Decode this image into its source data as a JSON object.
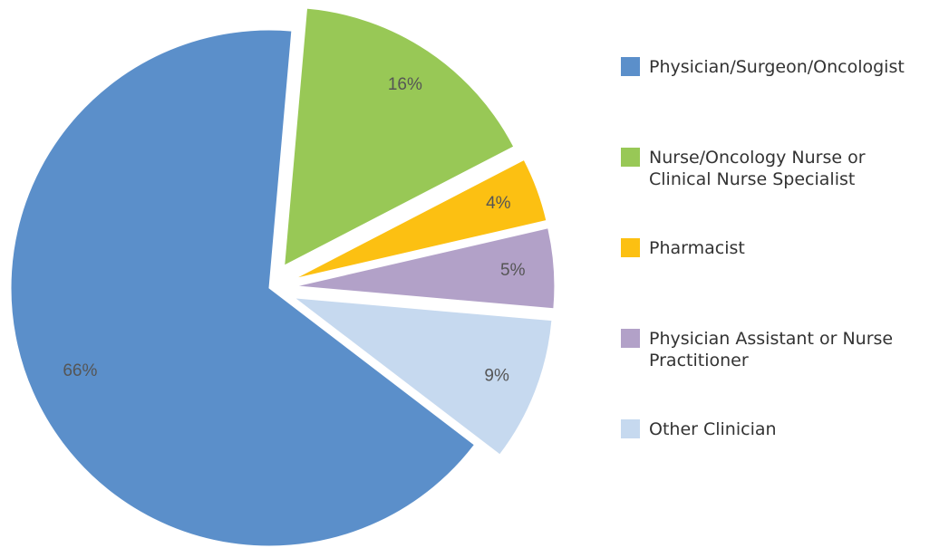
{
  "chart_data": {
    "type": "pie",
    "categories": [
      "Physician/Surgeon/Oncologist",
      "Nurse/Oncology Nurse or Clinical Nurse Specialist",
      "Pharmacist",
      "Physician Assistant or Nurse Practitioner",
      "Other Clinician"
    ],
    "values": [
      66,
      16,
      4,
      5,
      9
    ],
    "value_labels": [
      "66%",
      "16%",
      "4%",
      "5%",
      "9%"
    ],
    "colors": [
      "#5b8fca",
      "#98c856",
      "#fcc012",
      "#b2a1c8",
      "#c6d9ef"
    ],
    "legend": "right"
  }
}
